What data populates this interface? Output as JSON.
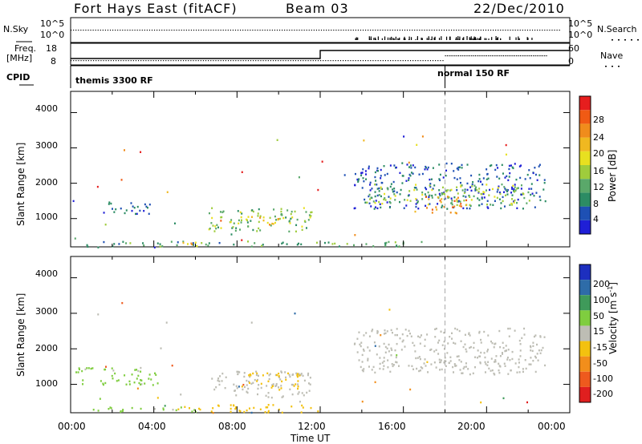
{
  "header": {
    "station": "Fort Hays East (fitACF)",
    "beam": "Beam 03",
    "date": "22/Dec/2010"
  },
  "strips": {
    "nsky_label": "N.Sky",
    "nsky_ticks": [
      "10^5",
      "10^0"
    ],
    "nsearch_label": "N.Search",
    "nsearch_ticks": [
      "10^5",
      "10^0"
    ],
    "freq_label": "Freq.",
    "freq_unit": "[MHz]",
    "freq_ticks": [
      "18",
      "8"
    ],
    "nave_label": "Nave",
    "nave_ticks": [
      "60",
      "0"
    ],
    "cpid_label": "CPID",
    "cpid_segments": [
      {
        "label": "themis 3300 RF",
        "start": "00:00",
        "end": "18:00"
      },
      {
        "label": "normal 150 RF",
        "start": "18:00",
        "end": "24:00"
      }
    ]
  },
  "colors": {
    "power": [
      "#1f1fd6",
      "#1e50b4",
      "#2c8c64",
      "#5aa86a",
      "#9fcc3c",
      "#e8e020",
      "#f0b820",
      "#f08c1c",
      "#f05a14",
      "#e61e1e"
    ],
    "velocity": [
      "#1d2fbf",
      "#2e6ca8",
      "#3f9a5a",
      "#7fcd3f",
      "#bdbdb4",
      "#f3c10f",
      "#f28e1b",
      "#ee5a1e",
      "#e01f1f"
    ]
  },
  "chart_data": [
    {
      "type": "heatmap",
      "title": "",
      "xlabel": "",
      "ylabel": "Slant Range [km]",
      "xlim": [
        0,
        24
      ],
      "ylim": [
        200,
        4600
      ],
      "xticks": [
        "00:00",
        "04:00",
        "08:00",
        "12:00",
        "16:00",
        "20:00",
        "00:00"
      ],
      "yticks": [
        "1000",
        "2000",
        "3000",
        "4000"
      ],
      "colorbar": {
        "label": "Power [dB]",
        "ticks": [
          "4",
          "8",
          "12",
          "16",
          "20",
          "24",
          "28"
        ],
        "range": [
          0,
          30
        ]
      },
      "marker_time": 18,
      "regions": [
        {
          "t0": 0.0,
          "t1": 0.4,
          "r0": 1450,
          "r1": 1550,
          "v": 4
        },
        {
          "t0": 1.0,
          "t1": 3.8,
          "r0": 1150,
          "r1": 1500,
          "v": 5
        },
        {
          "t0": 6.6,
          "t1": 11.6,
          "r0": 650,
          "r1": 1350,
          "v": 12
        },
        {
          "t0": 7.6,
          "t1": 10.2,
          "r0": 850,
          "r1": 1100,
          "v": 19
        },
        {
          "t0": 0.6,
          "t1": 17.0,
          "r0": 230,
          "r1": 380,
          "v": 9
        },
        {
          "t0": 4.8,
          "t1": 6.5,
          "r0": 230,
          "r1": 360,
          "v": 21
        },
        {
          "t0": 13.6,
          "t1": 22.8,
          "r0": 1300,
          "r1": 2600,
          "v": 5
        },
        {
          "t0": 14.2,
          "t1": 22.2,
          "r0": 1400,
          "r1": 2000,
          "v": 13
        },
        {
          "t0": 17.0,
          "t1": 19.0,
          "r0": 1150,
          "r1": 1650,
          "v": 22
        }
      ]
    },
    {
      "type": "heatmap",
      "title": "",
      "xlabel": "Time UT",
      "ylabel": "Slant Range [km]",
      "xlim": [
        0,
        24
      ],
      "ylim": [
        200,
        4600
      ],
      "xticks": [
        "00:00",
        "04:00",
        "08:00",
        "12:00",
        "16:00",
        "20:00",
        "00:00"
      ],
      "yticks": [
        "1000",
        "2000",
        "3000",
        "4000"
      ],
      "colorbar": {
        "label": "Velocity [m s^-1]",
        "ticks": [
          "200",
          "100",
          "50",
          "15",
          "-15",
          "-50",
          "-100",
          "-200"
        ],
        "range": [
          -250,
          250
        ]
      },
      "marker_time": 18,
      "regions": [
        {
          "t0": 0.2,
          "t1": 4.2,
          "r0": 1000,
          "r1": 1500,
          "v": 40
        },
        {
          "t0": 0.6,
          "t1": 6.0,
          "r0": 230,
          "r1": 380,
          "v": 40
        },
        {
          "t0": 6.6,
          "t1": 11.6,
          "r0": 650,
          "r1": 1400,
          "v": 0
        },
        {
          "t0": 8.2,
          "t1": 11.0,
          "r0": 850,
          "r1": 1350,
          "v": -40
        },
        {
          "t0": 5.0,
          "t1": 12.0,
          "r0": 230,
          "r1": 450,
          "v": -45
        },
        {
          "t0": 13.6,
          "t1": 22.8,
          "r0": 1300,
          "r1": 2600,
          "v": 0
        }
      ]
    }
  ]
}
